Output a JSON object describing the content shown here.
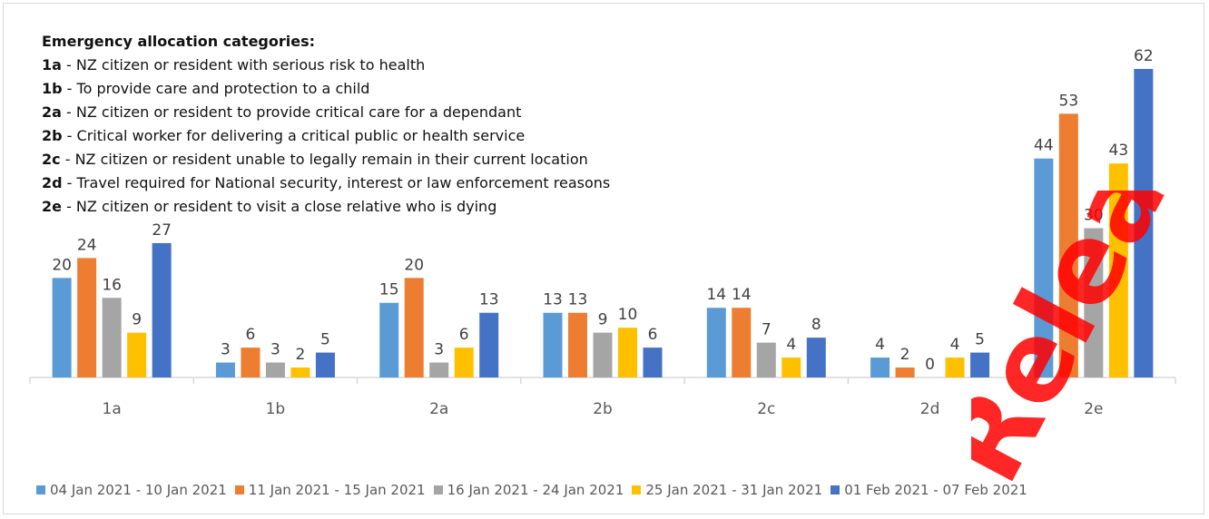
{
  "notes": {
    "heading": "Emergency allocation categories:",
    "items": [
      {
        "code": "1a",
        "text": " - NZ citizen or resident with serious risk to health"
      },
      {
        "code": "1b",
        "text": " - To provide care and protection to a child"
      },
      {
        "code": "2a",
        "text": " - NZ citizen or resident to provide critical care for a dependant"
      },
      {
        "code": "2b",
        "text": " - Critical worker for delivering a critical public or health service"
      },
      {
        "code": "2c",
        "text": " - NZ citizen or resident unable to legally remain in their current location"
      },
      {
        "code": "2d",
        "text": " - Travel required for National security, interest or law enforcement reasons"
      },
      {
        "code": "2e",
        "text": " - NZ citizen or resident to visit a close relative who is dying"
      }
    ]
  },
  "chart_data": {
    "type": "bar",
    "categories": [
      "1a",
      "1b",
      "2a",
      "2b",
      "2c",
      "2d",
      "2e"
    ],
    "series": [
      {
        "name": "04 Jan 2021 - 10 Jan 2021",
        "color": "#5b9bd5",
        "values": [
          20,
          3,
          15,
          13,
          14,
          4,
          44
        ]
      },
      {
        "name": "11 Jan 2021 - 15 Jan 2021",
        "color": "#ed7d31",
        "values": [
          24,
          6,
          20,
          13,
          14,
          2,
          53
        ]
      },
      {
        "name": "16 Jan 2021 - 24 Jan 2021",
        "color": "#a5a5a5",
        "values": [
          16,
          3,
          3,
          9,
          7,
          0,
          30
        ]
      },
      {
        "name": "25 Jan 2021 - 31 Jan 2021",
        "color": "#ffc000",
        "values": [
          9,
          2,
          6,
          10,
          4,
          4,
          43
        ]
      },
      {
        "name": "01 Feb 2021 - 07 Feb 2021",
        "color": "#4472c4",
        "values": [
          27,
          5,
          13,
          6,
          8,
          5,
          62
        ]
      }
    ],
    "ylim": [
      0,
      62
    ],
    "grid": false,
    "legend_position": "bottom",
    "data_labels": true
  },
  "watermark": {
    "text": "Released",
    "color": "#ff0000"
  }
}
